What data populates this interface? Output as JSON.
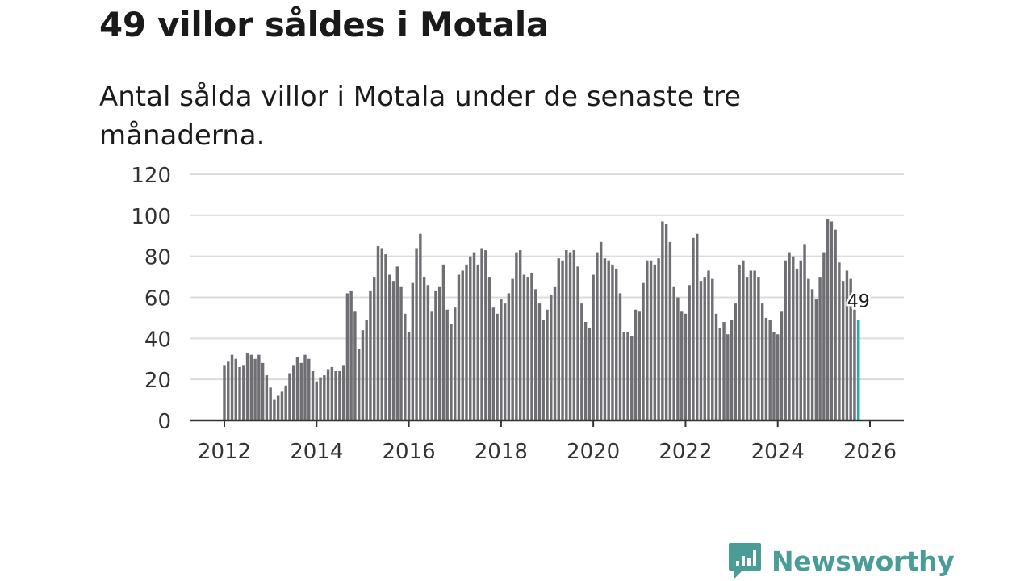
{
  "header": {
    "title": "49 villor såldes i Motala",
    "subtitle": "Antal sålda villor i Motala under de senaste tre månaderna."
  },
  "brand": {
    "name": "Newsworthy",
    "color": "#4a9d96"
  },
  "chart_data": {
    "type": "bar",
    "title": "49 villor såldes i Motala",
    "subtitle": "Antal sålda villor i Motala under de senaste tre månaderna.",
    "xlabel": "",
    "ylabel": "",
    "grid": true,
    "x_start": 2012,
    "x_step": 0.0833333,
    "xlim": [
      2011.0,
      2026.8
    ],
    "ylim": [
      0,
      120
    ],
    "yticks": [
      0,
      20,
      40,
      60,
      80,
      100,
      120
    ],
    "xticks": [
      2012,
      2014,
      2016,
      2018,
      2020,
      2022,
      2024,
      2026
    ],
    "bar_color": "#6e6e73",
    "highlight_color": "#1ab0a8",
    "highlight_label": "49",
    "values": [
      27,
      29,
      32,
      30,
      26,
      27,
      33,
      32,
      30,
      32,
      28,
      22,
      16,
      10,
      12,
      14,
      17,
      23,
      27,
      31,
      28,
      32,
      30,
      24,
      19,
      21,
      22,
      25,
      26,
      24,
      24,
      27,
      62,
      63,
      53,
      35,
      44,
      49,
      63,
      70,
      85,
      84,
      81,
      71,
      68,
      75,
      65,
      52,
      43,
      67,
      84,
      91,
      70,
      66,
      53,
      63,
      65,
      76,
      54,
      47,
      55,
      71,
      73,
      76,
      80,
      82,
      76,
      84,
      83,
      70,
      55,
      52,
      59,
      57,
      62,
      69,
      82,
      83,
      71,
      70,
      72,
      64,
      57,
      49,
      54,
      61,
      65,
      79,
      78,
      83,
      82,
      83,
      75,
      57,
      48,
      45,
      71,
      82,
      87,
      79,
      78,
      76,
      74,
      62,
      43,
      43,
      41,
      54,
      53,
      67,
      78,
      78,
      76,
      79,
      97,
      96,
      87,
      65,
      60,
      53,
      52,
      66,
      89,
      91,
      68,
      70,
      73,
      69,
      52,
      45,
      48,
      42,
      49,
      57,
      76,
      78,
      70,
      73,
      73,
      70,
      57,
      50,
      49,
      43,
      42,
      53,
      78,
      82,
      80,
      74,
      78,
      86,
      69,
      64,
      59,
      70,
      82,
      98,
      97,
      93,
      77,
      68,
      73,
      69,
      54,
      49
    ]
  }
}
